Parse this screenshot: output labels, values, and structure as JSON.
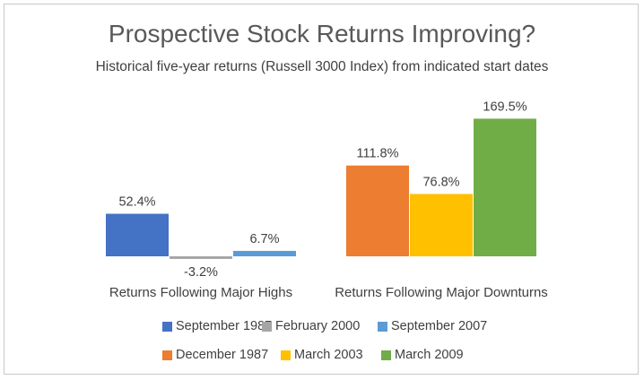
{
  "chart_data": {
    "type": "bar",
    "title": "Prospective Stock Returns Improving?",
    "subtitle": "Historical five-year returns (Russell 3000 Index) from indicated start dates",
    "value_suffix": "%",
    "groups": [
      {
        "label": "Returns Following Major Highs",
        "series": [
          {
            "name": "September 1987",
            "value": 52.4,
            "label": "52.4%",
            "color": "#4472C4"
          },
          {
            "name": "February 2000",
            "value": -3.2,
            "label": "-3.2%",
            "color": "#A5A5A5"
          },
          {
            "name": "September 2007",
            "value": 6.7,
            "label": "6.7%",
            "color": "#5B9BD5"
          }
        ]
      },
      {
        "label": "Returns Following Major Downturns",
        "series": [
          {
            "name": "December 1987",
            "value": 111.8,
            "label": "111.8%",
            "color": "#ED7D31"
          },
          {
            "name": "March 2003",
            "value": 76.8,
            "label": "76.8%",
            "color": "#FFC000"
          },
          {
            "name": "March 2009",
            "value": 169.5,
            "label": "169.5%",
            "color": "#70AD47"
          }
        ]
      }
    ],
    "legend": {
      "position": "bottom",
      "rows": [
        [
          "September 1987",
          "February 2000",
          "September 2007"
        ],
        [
          "December 1987",
          "March 2003",
          "March 2009"
        ]
      ]
    },
    "gridlines": false
  }
}
